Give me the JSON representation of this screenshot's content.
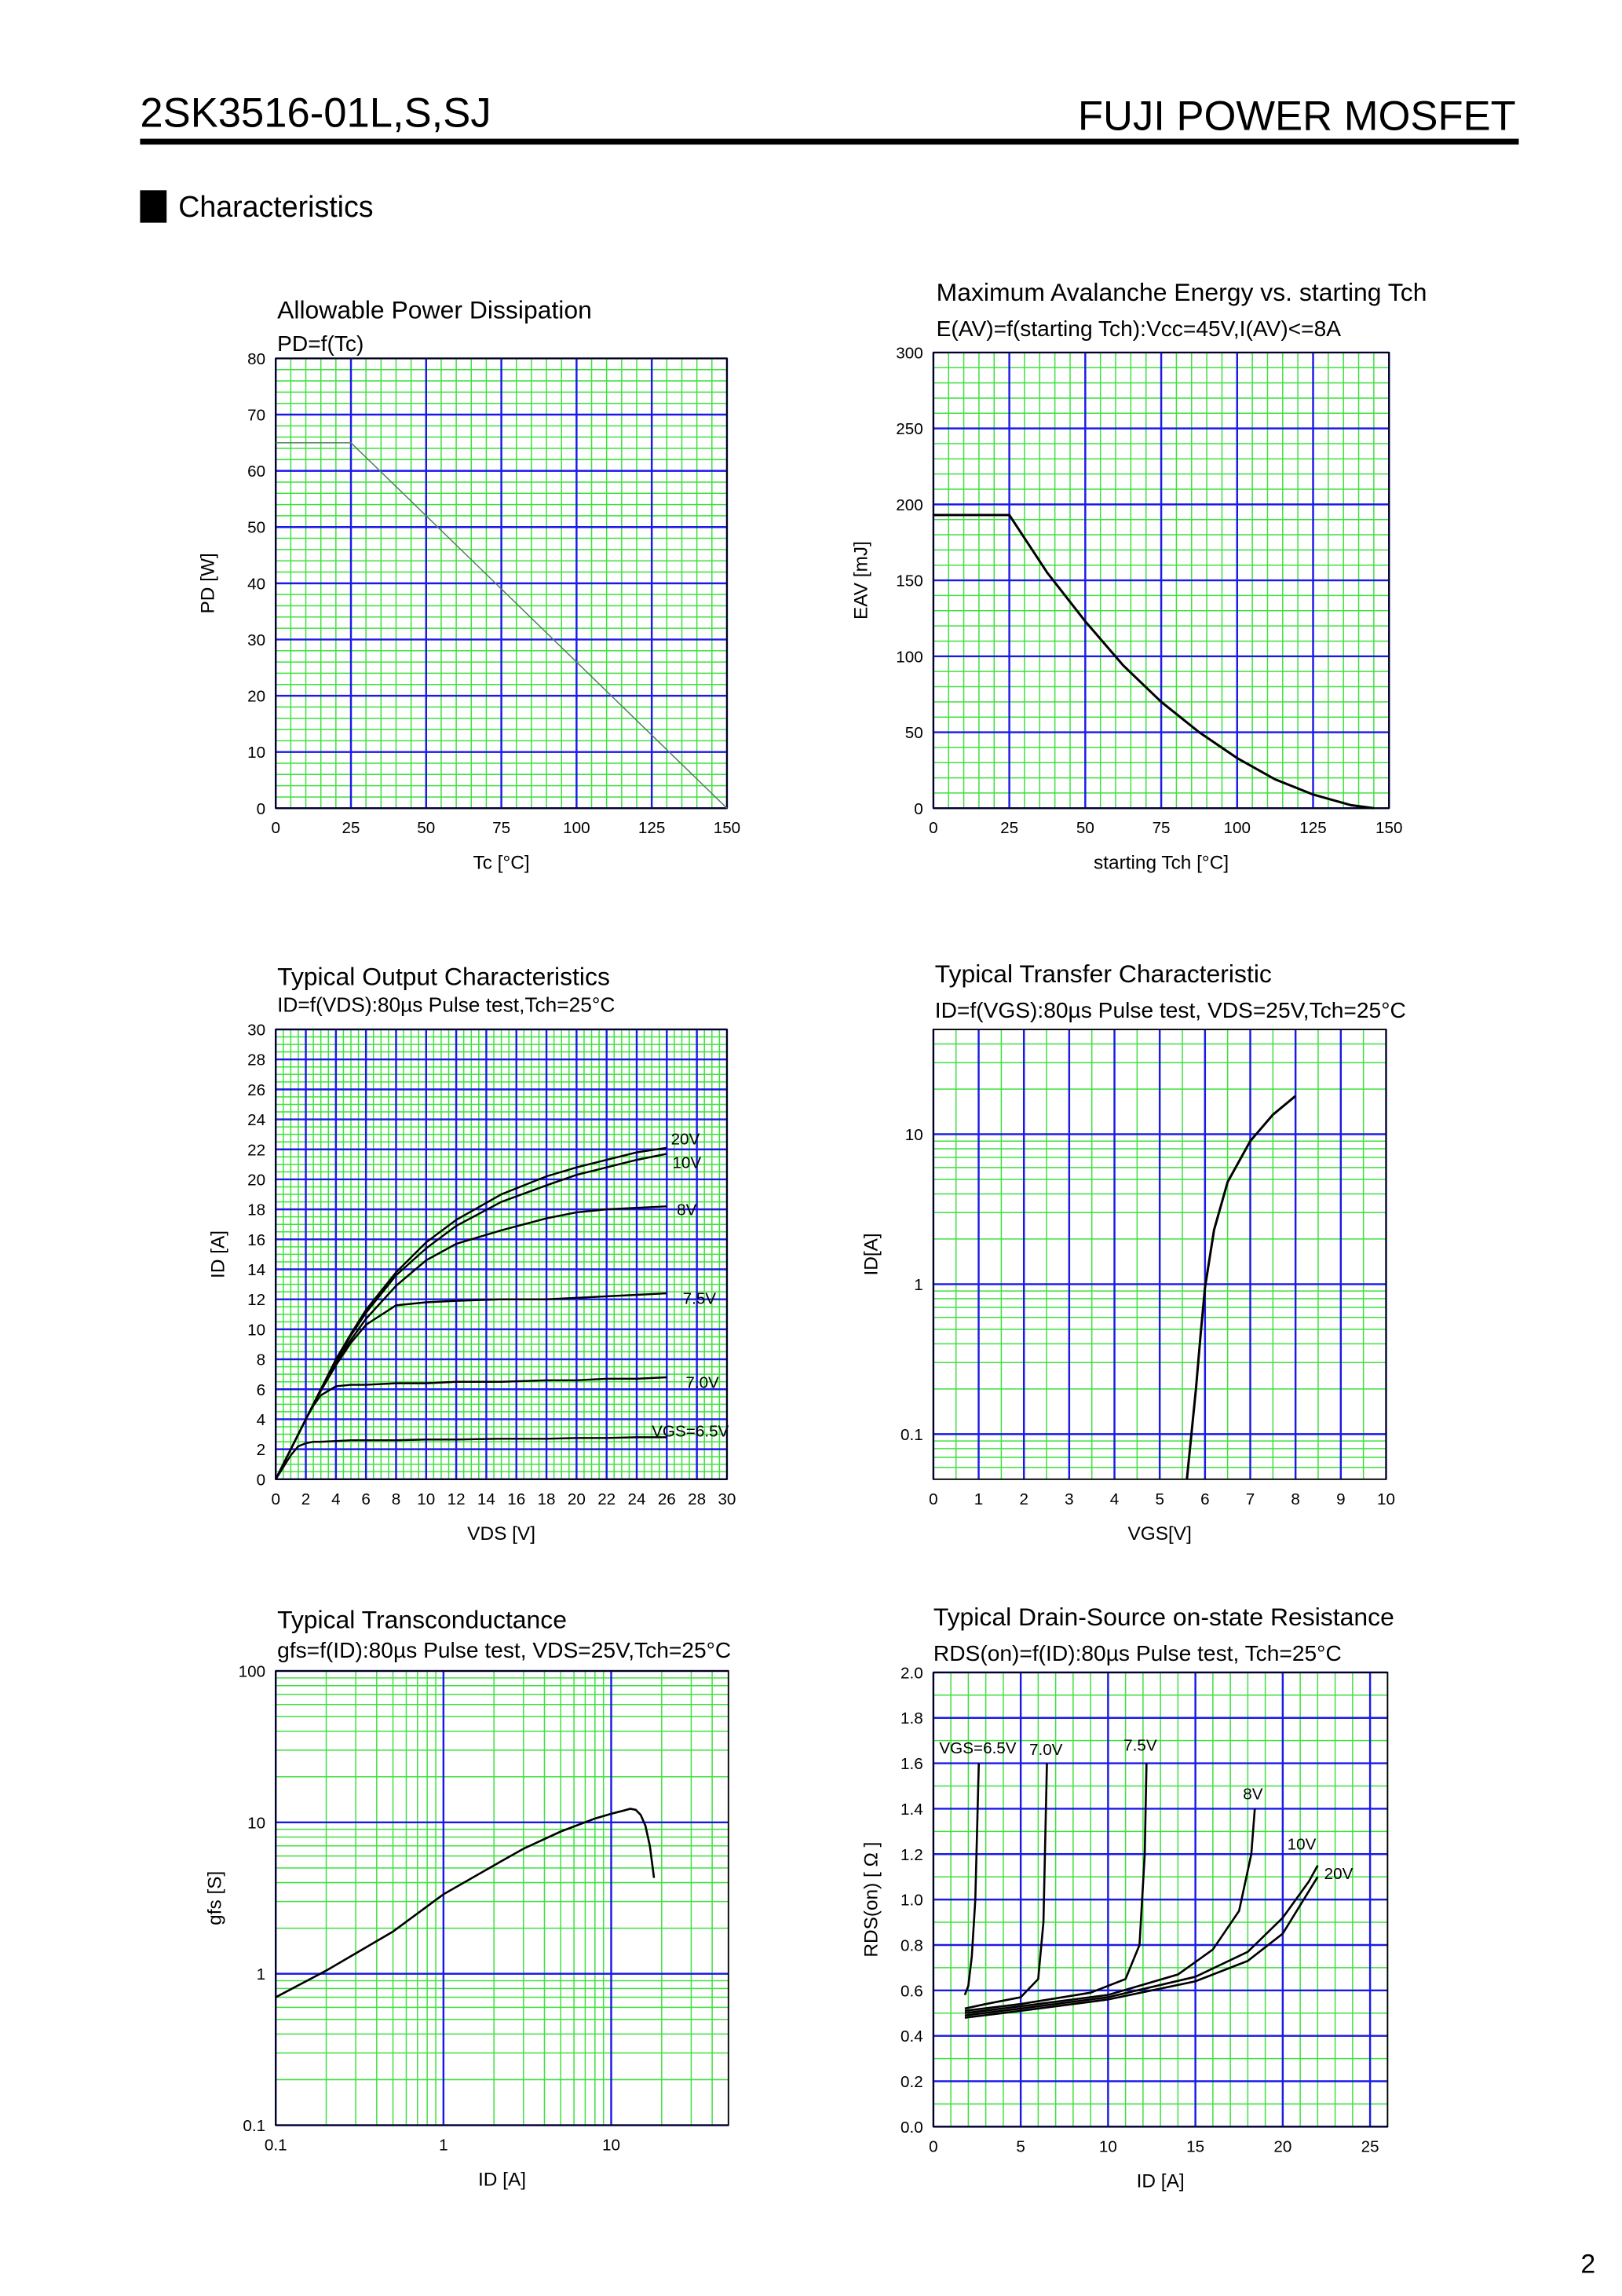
{
  "header": {
    "title": "2SK3516-01L,S,SJ",
    "brand": "FUJI POWER MOSFET",
    "section": "Characteristics",
    "page_number": "2"
  },
  "chart_data": [
    {
      "type": "line",
      "title": "Allowable Power Dissipation",
      "subtitle": "PD=f(Tc)",
      "x_label": "Tc [°C]",
      "y_label": "PD [W]",
      "x": [
        0,
        25,
        150
      ],
      "values": [
        65,
        65,
        0
      ],
      "color": "#4f7f5a",
      "xlim": [
        0,
        150
      ],
      "xticks": [
        0,
        25,
        50,
        75,
        100,
        125,
        150
      ],
      "ylim": [
        0,
        80
      ],
      "yticks": [
        0,
        10,
        20,
        30,
        40,
        50,
        60,
        70,
        80
      ],
      "grid": true
    },
    {
      "type": "line",
      "title": "Maximum Avalanche Energy vs. starting Tch",
      "subtitle": "E(AV)=f(starting Tch):Vcc=45V,I(AV)<=8A",
      "x_label": "starting Tch [°C]",
      "y_label": "EAV [mJ]",
      "x": [
        0,
        25,
        37.5,
        50,
        62.5,
        75,
        87.5,
        100,
        112.5,
        125,
        137.5,
        145
      ],
      "values": [
        193,
        193,
        155,
        123,
        94,
        70,
        50,
        33,
        19,
        9,
        2,
        0
      ],
      "color": "#000000",
      "xlim": [
        0,
        150
      ],
      "xticks": [
        0,
        25,
        50,
        75,
        100,
        125,
        150
      ],
      "ylim": [
        0,
        300
      ],
      "yticks": [
        0,
        50,
        100,
        150,
        200,
        250,
        300
      ],
      "grid": true
    },
    {
      "type": "line",
      "title": "Typical Output Characteristics",
      "subtitle": "ID=f(VDS):80µs Pulse test,Tch=25°C",
      "x_label": "VDS [V]",
      "y_label": "ID [A]",
      "x": [
        0,
        0.5,
        1,
        1.5,
        2,
        2.5,
        3,
        4,
        5,
        6,
        8,
        10,
        12,
        15,
        18,
        20,
        22,
        24,
        26
      ],
      "series": [
        {
          "name": "20V",
          "color": "#000000",
          "values": [
            0,
            1,
            2,
            3,
            4,
            5,
            6,
            8,
            9.7,
            11.3,
            13.8,
            15.8,
            17.3,
            19,
            20.2,
            20.8,
            21.3,
            21.8,
            22.1
          ]
        },
        {
          "name": "10V",
          "color": "#000000",
          "values": [
            0,
            1,
            2,
            3,
            4,
            5,
            6,
            7.9,
            9.6,
            11.1,
            13.6,
            15.4,
            16.9,
            18.5,
            19.6,
            20.3,
            20.8,
            21.3,
            21.7
          ]
        },
        {
          "name": "8V",
          "color": "#000000",
          "values": [
            0,
            1,
            2,
            3,
            4,
            5,
            6,
            7.8,
            9.3,
            10.7,
            12.9,
            14.6,
            15.7,
            16.6,
            17.4,
            17.8,
            18,
            18.1,
            18.2
          ]
        },
        {
          "name": "7.5V",
          "color": "#000000",
          "values": [
            0,
            1,
            2,
            3,
            4,
            5,
            5.9,
            7.6,
            9.1,
            10.3,
            11.6,
            11.8,
            11.9,
            12,
            12,
            12.1,
            12.2,
            12.3,
            12.4
          ]
        },
        {
          "name": "7.0V",
          "color": "#000000",
          "values": [
            0,
            1,
            2,
            3,
            4,
            4.9,
            5.6,
            6.2,
            6.3,
            6.3,
            6.4,
            6.4,
            6.5,
            6.5,
            6.6,
            6.6,
            6.7,
            6.7,
            6.8
          ]
        },
        {
          "name": "VGS=6.5V",
          "color": "#000000",
          "values": [
            0,
            0.8,
            1.6,
            2.2,
            2.4,
            2.5,
            2.5,
            2.55,
            2.6,
            2.6,
            2.6,
            2.65,
            2.65,
            2.7,
            2.7,
            2.75,
            2.75,
            2.8,
            2.8
          ]
        }
      ],
      "xlim": [
        0,
        30
      ],
      "xticks": [
        0,
        2,
        4,
        6,
        8,
        10,
        12,
        14,
        16,
        18,
        20,
        22,
        24,
        26,
        28,
        30
      ],
      "ylim": [
        0,
        30
      ],
      "yticks": [
        0,
        2,
        4,
        6,
        8,
        10,
        12,
        14,
        16,
        18,
        20,
        22,
        24,
        26,
        28,
        30
      ],
      "grid": true
    },
    {
      "type": "line",
      "title": "Typical Transfer Characteristic",
      "subtitle": "ID=f(VGS):80µs Pulse test, VDS=25V,Tch=25°C",
      "x_label": "VGS[V]",
      "y_label": "ID[A]",
      "x": [
        5.6,
        5.7,
        5.8,
        5.9,
        6,
        6.2,
        6.5,
        7,
        7.5,
        8
      ],
      "values": [
        0.05,
        0.1,
        0.2,
        0.45,
        0.95,
        2.3,
        4.8,
        9,
        13.5,
        18
      ],
      "color": "#000000",
      "xlim": [
        0,
        10
      ],
      "xticks": [
        0,
        1,
        2,
        3,
        4,
        5,
        6,
        7,
        8,
        9,
        10
      ],
      "ylim": [
        0.05,
        50
      ],
      "yticks": [
        0.1,
        1,
        10
      ],
      "yscale": "log",
      "grid": true
    },
    {
      "type": "line",
      "title": "Typical Transconductance",
      "subtitle": "gfs=f(ID):80µs Pulse test, VDS=25V,Tch=25°C",
      "x_label": "ID [A]",
      "y_label": "gfs [S]",
      "x": [
        0.1,
        0.2,
        0.5,
        1,
        2,
        3,
        5,
        8,
        10,
        12,
        13,
        14,
        15,
        16,
        17,
        18
      ],
      "values": [
        0.7,
        1.05,
        1.9,
        3.35,
        5.2,
        6.7,
        8.7,
        10.6,
        11.4,
        12,
        12.3,
        12.1,
        11.2,
        9.5,
        7,
        4.3
      ],
      "color": "#000000",
      "xlim": [
        0.1,
        50
      ],
      "xticks": [
        0.1,
        1,
        10
      ],
      "xscale": "log",
      "ylim": [
        0.1,
        100
      ],
      "yticks": [
        0.1,
        1,
        10,
        100
      ],
      "yscale": "log",
      "grid": true
    },
    {
      "type": "line",
      "title": "Typical Drain-Source on-state Resistance",
      "subtitle": "RDS(on)=f(ID):80µs Pulse test, Tch=25°C",
      "x_label": "ID [A]",
      "y_label": "RDS(on) [ Ω ]",
      "series": [
        {
          "name": "VGS=6.5V",
          "color": "#000000",
          "x": [
            1.8,
            2,
            2.2,
            2.4,
            2.5,
            2.6
          ],
          "values": [
            0.58,
            0.62,
            0.75,
            1,
            1.3,
            1.6
          ]
        },
        {
          "name": "7.0V",
          "color": "#000000",
          "x": [
            1.8,
            3,
            5,
            6,
            6.3,
            6.5
          ],
          "values": [
            0.52,
            0.54,
            0.57,
            0.65,
            0.9,
            1.6
          ]
        },
        {
          "name": "7.5V",
          "color": "#000000",
          "x": [
            1.8,
            5,
            9,
            11,
            11.8,
            12.1,
            12.2
          ],
          "values": [
            0.51,
            0.54,
            0.59,
            0.65,
            0.8,
            1.2,
            1.6
          ]
        },
        {
          "name": "8V",
          "color": "#000000",
          "x": [
            1.8,
            5,
            10,
            14,
            16,
            17.5,
            18.2,
            18.4
          ],
          "values": [
            0.5,
            0.53,
            0.58,
            0.67,
            0.78,
            0.95,
            1.2,
            1.4
          ]
        },
        {
          "name": "10V",
          "color": "#000000",
          "x": [
            1.8,
            5,
            10,
            15,
            18,
            20,
            21.5,
            22
          ],
          "values": [
            0.49,
            0.52,
            0.57,
            0.66,
            0.77,
            0.92,
            1.08,
            1.15
          ]
        },
        {
          "name": "20V",
          "color": "#000000",
          "x": [
            1.8,
            5,
            10,
            15,
            18,
            20,
            22
          ],
          "values": [
            0.48,
            0.51,
            0.56,
            0.64,
            0.73,
            0.85,
            1.1
          ]
        }
      ],
      "xlim": [
        0,
        26
      ],
      "xticks": [
        0,
        5,
        10,
        15,
        20,
        25
      ],
      "ylim": [
        0,
        2
      ],
      "yticks": [
        {
          "value": 0,
          "label": "0.0"
        },
        0.2,
        0.4,
        0.6,
        0.8,
        {
          "value": 1,
          "label": "1.0"
        },
        1.2,
        1.4,
        1.6,
        1.8,
        {
          "value": 2,
          "label": "2.0"
        }
      ],
      "grid": true
    }
  ]
}
